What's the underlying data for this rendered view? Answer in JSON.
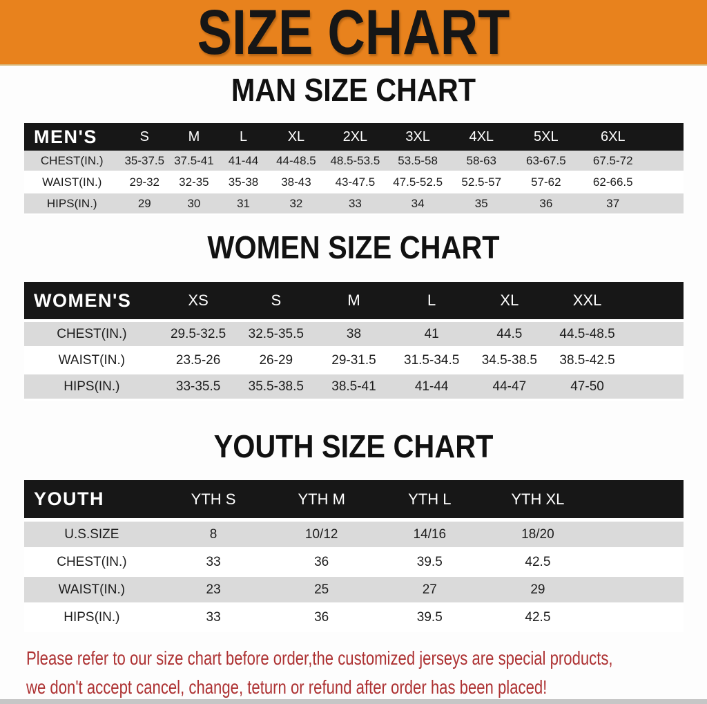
{
  "title": "SIZE CHART",
  "theme": {
    "banner_orange": "#E8821D",
    "bar_black": "#171717",
    "stripe_gray": "#DADADA",
    "note_red": "#AD3132",
    "bottom_strip_gray": "#C6C6C6"
  },
  "sections": [
    {
      "heading": "MAN SIZE CHART",
      "group_label": "MEN'S",
      "columns": [
        "S",
        "M",
        "L",
        "XL",
        "2XL",
        "3XL",
        "4XL",
        "5XL",
        "6XL"
      ],
      "rows": [
        {
          "label": "CHEST(IN.)",
          "values": [
            "35-37.5",
            "37.5-41",
            "41-44",
            "44-48.5",
            "48.5-53.5",
            "53.5-58",
            "58-63",
            "63-67.5",
            "67.5-72"
          ]
        },
        {
          "label": "WAIST(IN.)",
          "values": [
            "29-32",
            "32-35",
            "35-38",
            "38-43",
            "43-47.5",
            "47.5-52.5",
            "52.5-57",
            "57-62",
            "62-66.5"
          ]
        },
        {
          "label": "HIPS(IN.)",
          "values": [
            "29",
            "30",
            "31",
            "32",
            "33",
            "34",
            "35",
            "36",
            "37"
          ]
        }
      ]
    },
    {
      "heading": "WOMEN SIZE CHART",
      "group_label": "WOMEN'S",
      "columns": [
        "XS",
        "S",
        "M",
        "L",
        "XL",
        "XXL"
      ],
      "rows": [
        {
          "label": "CHEST(IN.)",
          "values": [
            "29.5-32.5",
            "32.5-35.5",
            "38",
            "41",
            "44.5",
            "44.5-48.5"
          ]
        },
        {
          "label": "WAIST(IN.)",
          "values": [
            "23.5-26",
            "26-29",
            "29-31.5",
            "31.5-34.5",
            "34.5-38.5",
            "38.5-42.5"
          ]
        },
        {
          "label": "HIPS(IN.)",
          "values": [
            "33-35.5",
            "35.5-38.5",
            "38.5-41",
            "41-44",
            "44-47",
            "47-50"
          ]
        }
      ]
    },
    {
      "heading": "YOUTH SIZE CHART",
      "group_label": "YOUTH",
      "columns": [
        "YTH S",
        "YTH M",
        "YTH L",
        "YTH XL"
      ],
      "rows": [
        {
          "label": "U.S.SIZE",
          "values": [
            "8",
            "10/12",
            "14/16",
            "18/20"
          ]
        },
        {
          "label": "CHEST(IN.)",
          "values": [
            "33",
            "36",
            "39.5",
            "42.5"
          ]
        },
        {
          "label": "WAIST(IN.)",
          "values": [
            "23",
            "25",
            "27",
            "29"
          ]
        },
        {
          "label": "HIPS(IN.)",
          "values": [
            "33",
            "36",
            "39.5",
            "42.5"
          ]
        }
      ]
    }
  ],
  "note": {
    "line1": "Please refer to our size chart before order,the customized jerseys are special products,",
    "line2": "we don't accept cancel, change, teturn or refund after order has been placed!"
  }
}
